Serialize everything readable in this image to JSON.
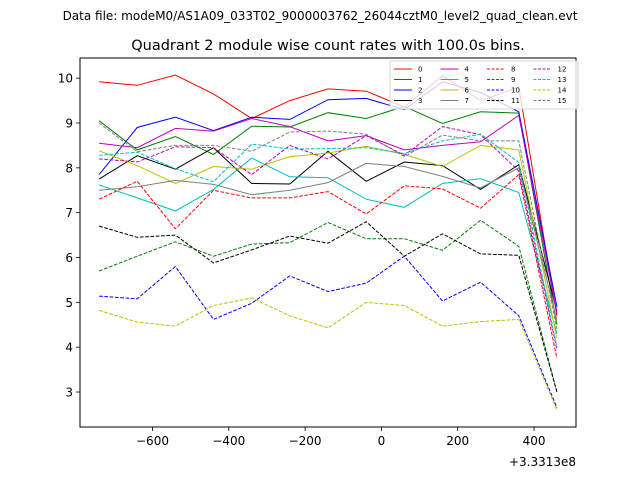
{
  "chart_data": {
    "type": "line",
    "suptitle": "Data file: modeM0/AS1A09_033T02_9000003762_26044cztM0_level2_quad_clean.evt",
    "title": "Quadrant 2 module wise count rates with 100.0s bins.",
    "xlabel": "",
    "ylabel": "",
    "x_offset_label": "+3.3313e8",
    "xlim": [
      -790,
      510
    ],
    "ylim": [
      2.22,
      10.45
    ],
    "xticks": [
      -600,
      -400,
      -200,
      0,
      200,
      400
    ],
    "xtick_labels": [
      "−600",
      "−400",
      "−200",
      "0",
      "200",
      "400"
    ],
    "yticks": [
      3,
      4,
      5,
      6,
      7,
      8,
      9,
      10
    ],
    "ytick_labels": [
      "3",
      "4",
      "5",
      "6",
      "7",
      "8",
      "9",
      "10"
    ],
    "grid": false,
    "legend_position": "top-right",
    "legend_columns": 4,
    "x": [
      -740,
      -640,
      -540,
      -440,
      -340,
      -240,
      -140,
      -40,
      60,
      160,
      260,
      360,
      460
    ],
    "series": [
      {
        "name": "0",
        "color": "#ff0000",
        "dash": "solid",
        "values": [
          9.92,
          9.84,
          10.07,
          9.65,
          9.1,
          9.5,
          9.76,
          9.71,
          9.36,
          10.05,
          9.5,
          9.8,
          4.7
        ]
      },
      {
        "name": "1",
        "color": "#008000",
        "dash": "solid",
        "values": [
          9.05,
          8.4,
          8.7,
          8.3,
          8.93,
          8.91,
          9.23,
          9.1,
          9.37,
          8.99,
          9.25,
          9.22,
          4.5
        ]
      },
      {
        "name": "2",
        "color": "#0000ff",
        "dash": "solid",
        "values": [
          7.85,
          8.9,
          9.13,
          8.83,
          9.13,
          9.08,
          9.52,
          9.55,
          9.3,
          9.92,
          9.68,
          9.25,
          4.9
        ]
      },
      {
        "name": "3",
        "color": "#000000",
        "dash": "solid",
        "values": [
          7.75,
          8.27,
          7.97,
          8.45,
          7.65,
          7.64,
          8.37,
          7.7,
          8.13,
          8.05,
          7.52,
          8.07,
          4.8
        ]
      },
      {
        "name": "4",
        "color": "#bf00bf",
        "dash": "solid",
        "values": [
          8.55,
          8.45,
          8.88,
          8.82,
          9.1,
          8.92,
          8.6,
          8.72,
          8.4,
          8.5,
          8.58,
          9.17,
          4.75
        ]
      },
      {
        "name": "5",
        "color": "#00bfbf",
        "dash": "solid",
        "values": [
          7.62,
          7.33,
          7.04,
          7.52,
          8.22,
          7.8,
          7.78,
          7.3,
          7.12,
          7.65,
          7.76,
          7.45,
          4.3
        ]
      },
      {
        "name": "6",
        "color": "#bfbf00",
        "dash": "solid",
        "values": [
          8.38,
          8.05,
          7.65,
          8.03,
          7.97,
          8.25,
          8.33,
          8.48,
          8.3,
          8.03,
          8.5,
          8.4,
          4.2
        ]
      },
      {
        "name": "7",
        "color": "#808080",
        "dash": "solid",
        "values": [
          7.5,
          7.58,
          7.72,
          7.63,
          7.4,
          7.5,
          7.67,
          8.1,
          8.03,
          7.81,
          7.55,
          8.0,
          4.6
        ]
      },
      {
        "name": "8",
        "color": "#ff0000",
        "dash": "dashed",
        "values": [
          7.3,
          7.7,
          6.64,
          7.5,
          7.33,
          7.33,
          7.47,
          6.97,
          7.6,
          7.53,
          7.1,
          7.85,
          3.75
        ]
      },
      {
        "name": "9",
        "color": "#008000",
        "dash": "dashed",
        "values": [
          5.7,
          6.03,
          6.35,
          6.03,
          6.3,
          6.33,
          6.78,
          6.42,
          6.42,
          6.16,
          6.83,
          6.25,
          3.0
        ]
      },
      {
        "name": "10",
        "color": "#0000ff",
        "dash": "dashed",
        "values": [
          5.14,
          5.08,
          5.8,
          4.62,
          4.98,
          5.59,
          5.24,
          5.43,
          6.03,
          5.03,
          5.45,
          4.7,
          2.65
        ]
      },
      {
        "name": "11",
        "color": "#000000",
        "dash": "dashed",
        "values": [
          6.7,
          6.45,
          6.5,
          5.88,
          6.17,
          6.48,
          6.32,
          6.8,
          6.03,
          6.53,
          6.08,
          6.05,
          3.0
        ]
      },
      {
        "name": "12",
        "color": "#bf00bf",
        "dash": "dashed",
        "values": [
          8.2,
          8.13,
          8.47,
          8.45,
          7.85,
          8.5,
          8.2,
          8.72,
          8.28,
          8.92,
          8.74,
          7.93,
          3.95
        ]
      },
      {
        "name": "13",
        "color": "#00bfbf",
        "dash": "dashed",
        "values": [
          8.28,
          8.35,
          7.98,
          7.69,
          8.53,
          8.42,
          8.43,
          8.45,
          8.32,
          8.6,
          8.75,
          8.12,
          4.0
        ]
      },
      {
        "name": "14",
        "color": "#bfbf00",
        "dash": "dashed",
        "values": [
          4.82,
          4.56,
          4.47,
          4.93,
          5.1,
          4.7,
          4.43,
          5.0,
          4.93,
          4.47,
          4.57,
          4.62,
          2.6
        ]
      },
      {
        "name": "15",
        "color": "#808080",
        "dash": "dashed",
        "values": [
          9.0,
          8.36,
          8.5,
          8.5,
          8.37,
          8.8,
          8.82,
          8.75,
          8.25,
          8.73,
          8.6,
          8.6,
          4.4
        ]
      }
    ]
  }
}
